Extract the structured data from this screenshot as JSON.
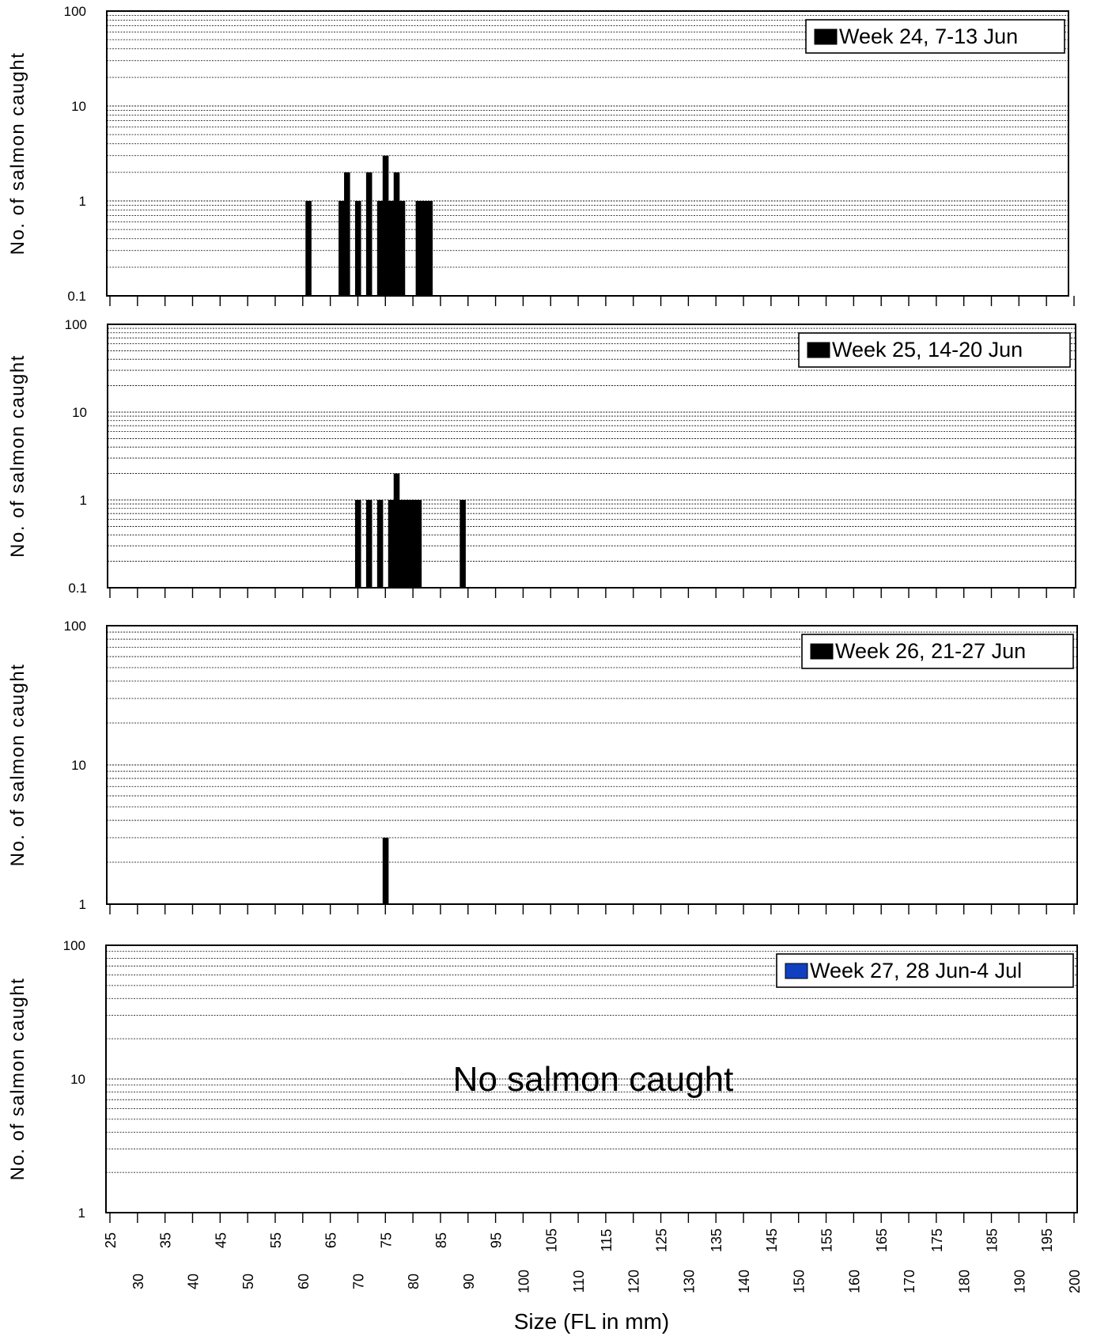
{
  "chart_data": [
    {
      "type": "bar",
      "y_scale": "log",
      "ylim": [
        0.1,
        100
      ],
      "y_ticks": [
        "100",
        "10",
        "1",
        "0.1"
      ],
      "ylabel": "No. of salmon caught",
      "legend": {
        "label": "Week 24, 7-13 Jun",
        "color": "#000000",
        "position": "top-right"
      },
      "bars": [
        {
          "x": 61,
          "value": 1
        },
        {
          "x": 67,
          "value": 1
        },
        {
          "x": 68,
          "value": 2
        },
        {
          "x": 70,
          "value": 1
        },
        {
          "x": 72,
          "value": 2
        },
        {
          "x": 74,
          "value": 1
        },
        {
          "x": 75,
          "value": 3
        },
        {
          "x": 76,
          "value": 1
        },
        {
          "x": 77,
          "value": 2
        },
        {
          "x": 78,
          "value": 1
        },
        {
          "x": 81,
          "value": 1
        },
        {
          "x": 82,
          "value": 1
        },
        {
          "x": 83,
          "value": 1
        }
      ]
    },
    {
      "type": "bar",
      "y_scale": "log",
      "ylim": [
        0.1,
        100
      ],
      "y_ticks": [
        "100",
        "10",
        "1",
        "0.1"
      ],
      "ylabel": "No. of salmon caught",
      "legend": {
        "label": "Week 25, 14-20 Jun",
        "color": "#000000",
        "position": "top-right"
      },
      "bars": [
        {
          "x": 70,
          "value": 1
        },
        {
          "x": 72,
          "value": 1
        },
        {
          "x": 74,
          "value": 1
        },
        {
          "x": 76,
          "value": 1
        },
        {
          "x": 77,
          "value": 2
        },
        {
          "x": 78,
          "value": 1
        },
        {
          "x": 79,
          "value": 1
        },
        {
          "x": 80,
          "value": 1
        },
        {
          "x": 81,
          "value": 1
        },
        {
          "x": 89,
          "value": 1
        }
      ]
    },
    {
      "type": "bar",
      "y_scale": "log",
      "ylim": [
        1,
        100
      ],
      "y_ticks": [
        "100",
        "10",
        "1"
      ],
      "ylabel": "No. of salmon caught",
      "legend": {
        "label": "Week 26, 21-27 Jun",
        "color": "#000000",
        "position": "top-right"
      },
      "bars": [
        {
          "x": 75,
          "value": 3
        }
      ]
    },
    {
      "type": "bar",
      "y_scale": "log",
      "ylim": [
        1,
        100
      ],
      "y_ticks": [
        "100",
        "10",
        "1"
      ],
      "ylabel": "No. of salmon caught",
      "legend": {
        "label": "Week 27, 28 Jun-4 Jul",
        "color": "#1040c0",
        "position": "top-right"
      },
      "annotation": "No salmon caught",
      "bars": []
    }
  ],
  "x_axis": {
    "xlim": [
      25,
      200
    ],
    "ticks": [
      "25",
      "30",
      "35",
      "40",
      "45",
      "50",
      "55",
      "60",
      "65",
      "70",
      "75",
      "80",
      "85",
      "90",
      "95",
      "100",
      "105",
      "110",
      "115",
      "120",
      "125",
      "130",
      "135",
      "140",
      "145",
      "150",
      "155",
      "160",
      "165",
      "170",
      "175",
      "180",
      "185",
      "190",
      "195",
      "200"
    ],
    "xlabel": "Size (FL in mm)"
  }
}
